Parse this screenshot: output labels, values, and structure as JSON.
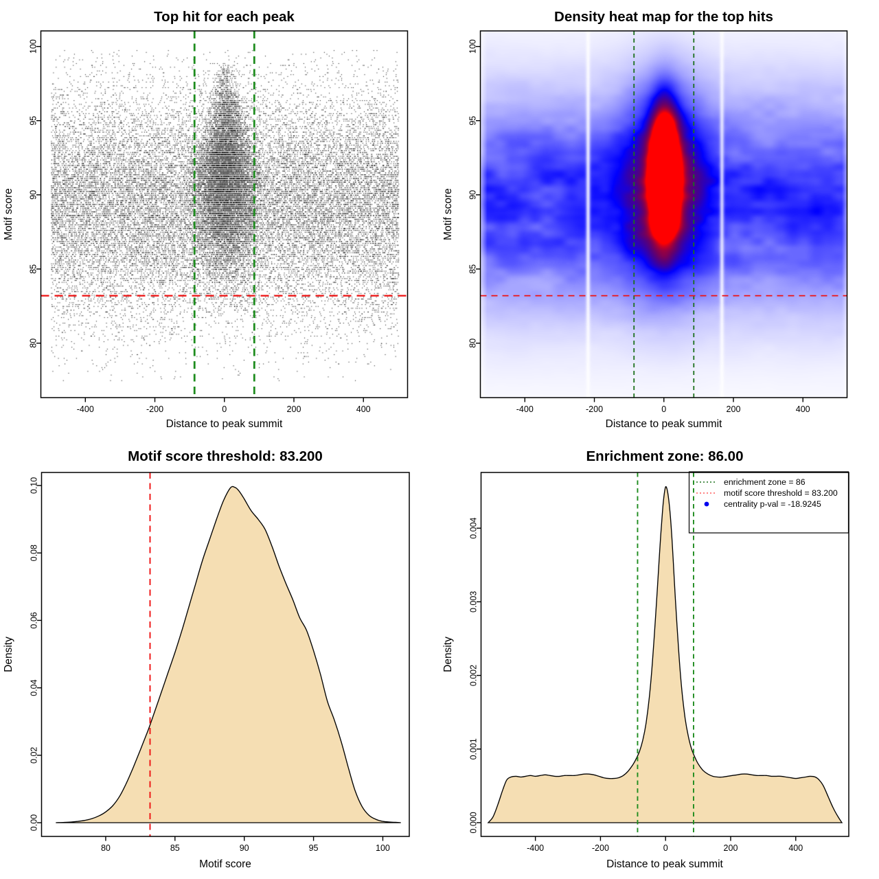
{
  "colors": {
    "background": "#ffffff",
    "wheat_fill": "#F5DEB3",
    "curve_stroke": "#000000",
    "threshold_red": "#EE1111",
    "zone_green_bright": "#1E8C1E",
    "zone_green_dark": "#1C701C",
    "legend_red_sample": "#FF5A5A",
    "legend_blue_dot": "#0000EE",
    "scatter_point": "#000000",
    "heat_colormap": [
      "#FFFFFF",
      "#0000FF",
      "#FF0000"
    ]
  },
  "chart_data": [
    {
      "type": "scatter",
      "panel": "top-left",
      "title": "Top hit for each peak",
      "xlabel": "Distance to peak summit",
      "ylabel": "Motif score",
      "xlim": [
        -528,
        527
      ],
      "ylim": [
        76.33,
        101.05
      ],
      "xticks": [
        -400,
        -200,
        0,
        200,
        400
      ],
      "xtick_labels": [
        "-400",
        "-200",
        "0",
        "200",
        "400"
      ],
      "yticks": [
        80,
        85,
        90,
        95,
        100
      ],
      "ytick_labels": [
        "80",
        "85",
        "90",
        "95",
        "100"
      ],
      "grid": false,
      "enrichment_zone_x": [
        -86,
        86
      ],
      "motif_score_threshold_y": 83.2,
      "scatter_model": {
        "seed": 12345,
        "n_background": 24500,
        "background_x_uniform": [
          -500,
          500
        ],
        "background_y_mean": 89.4,
        "background_y_sd": 3.8,
        "background_wide_fraction": 0.06,
        "background_wide_mean": 88.3,
        "background_wide_sd": 6.2,
        "n_cluster": 9500,
        "cluster_x_center": 3,
        "cluster_y_mean": 91.1,
        "cluster_y_sd": 3.1,
        "cluster_x_sd_top": 16,
        "cluster_x_sd_growth": 4.6,
        "cluster_x_sd_max": 45,
        "cluster_x_limit": 102,
        "score_quantum": 0.125,
        "score_range": [
          77.4,
          99.85
        ]
      }
    },
    {
      "type": "heatmap",
      "panel": "top-right",
      "title": "Density heat map for the top hits",
      "xlabel": "Distance to peak summit",
      "ylabel": "Motif score",
      "xlim": [
        -528,
        527
      ],
      "ylim": [
        76.33,
        101.05
      ],
      "xticks": [
        -400,
        -200,
        0,
        200,
        400
      ],
      "xtick_labels": [
        "-400",
        "-200",
        "0",
        "200",
        "400"
      ],
      "yticks": [
        80,
        85,
        90,
        95,
        100
      ],
      "ytick_labels": [
        "80",
        "85",
        "90",
        "95",
        "100"
      ],
      "grid": false,
      "enrichment_zone_x": [
        -86,
        86
      ],
      "motif_score_threshold_y": 83.2,
      "hotspot": {
        "x_center": 0,
        "score_center": 91.4,
        "x_sd": 26,
        "score_sd": 2.7
      },
      "haze_band": {
        "score_center": 89.6,
        "score_sd": 4.3
      },
      "white_streaks_x": [
        -220,
        165
      ],
      "colormap": [
        "#FFFFFF",
        "#0000FF",
        "#FF0000"
      ]
    },
    {
      "type": "area",
      "panel": "bottom-left",
      "title": "Motif score threshold: 83.200",
      "xlabel": "Motif score",
      "ylabel": "Density",
      "xlim": [
        75.37,
        101.91
      ],
      "ylim": [
        -0.00407,
        0.10387
      ],
      "xticks": [
        80,
        85,
        90,
        95,
        100
      ],
      "xtick_labels": [
        "80",
        "85",
        "90",
        "95",
        "100"
      ],
      "yticks": [
        0,
        0.02,
        0.04,
        0.06,
        0.08,
        0.1
      ],
      "ytick_labels": [
        "0.00",
        "0.02",
        "0.04",
        "0.06",
        "0.08",
        "0.10"
      ],
      "grid": false,
      "threshold_x": 83.2,
      "curve": [
        [
          76.4,
          0
        ],
        [
          77.0,
          0.0001
        ],
        [
          77.5,
          0.0002
        ],
        [
          78.0,
          0.0004
        ],
        [
          78.5,
          0.0007
        ],
        [
          79.0,
          0.0012
        ],
        [
          79.5,
          0.002
        ],
        [
          80.0,
          0.0032
        ],
        [
          80.5,
          0.005
        ],
        [
          81.0,
          0.0078
        ],
        [
          81.5,
          0.0118
        ],
        [
          82.0,
          0.0165
        ],
        [
          82.5,
          0.0216
        ],
        [
          83.0,
          0.0268
        ],
        [
          83.2,
          0.029
        ],
        [
          83.5,
          0.0325
        ],
        [
          84.0,
          0.0385
        ],
        [
          84.5,
          0.0445
        ],
        [
          85.0,
          0.0505
        ],
        [
          85.5,
          0.057
        ],
        [
          86.0,
          0.064
        ],
        [
          86.5,
          0.071
        ],
        [
          87.0,
          0.078
        ],
        [
          87.5,
          0.084
        ],
        [
          88.0,
          0.09
        ],
        [
          88.5,
          0.0955
        ],
        [
          89.0,
          0.0993
        ],
        [
          89.3,
          0.0995
        ],
        [
          89.6,
          0.0985
        ],
        [
          90.0,
          0.096
        ],
        [
          90.5,
          0.0925
        ],
        [
          91.0,
          0.09
        ],
        [
          91.5,
          0.087
        ],
        [
          92.0,
          0.082
        ],
        [
          92.5,
          0.0762
        ],
        [
          93.0,
          0.071
        ],
        [
          93.5,
          0.0662
        ],
        [
          94.0,
          0.0608
        ],
        [
          94.5,
          0.057
        ],
        [
          95.0,
          0.051
        ],
        [
          95.5,
          0.044
        ],
        [
          96.0,
          0.036
        ],
        [
          96.5,
          0.0305
        ],
        [
          97.0,
          0.024
        ],
        [
          97.5,
          0.0165
        ],
        [
          98.0,
          0.0095
        ],
        [
          98.5,
          0.0048
        ],
        [
          99.0,
          0.0022
        ],
        [
          99.5,
          0.001
        ],
        [
          100.0,
          0.0004
        ],
        [
          100.5,
          0.0002
        ],
        [
          101.0,
          0.0001
        ],
        [
          101.3,
          0
        ]
      ]
    },
    {
      "type": "area",
      "panel": "bottom-right",
      "title": "Enrichment zone: 86.00",
      "xlabel": "Distance to peak summit",
      "ylabel": "Density",
      "xlim": [
        -567,
        563
      ],
      "ylim": [
        -0.000187,
        0.004757
      ],
      "xticks": [
        -400,
        -200,
        0,
        200,
        400
      ],
      "xtick_labels": [
        "-400",
        "-200",
        "0",
        "200",
        "400"
      ],
      "yticks": [
        0,
        0.001,
        0.002,
        0.003,
        0.004
      ],
      "ytick_labels": [
        "0.000",
        "0.001",
        "0.002",
        "0.003",
        "0.004"
      ],
      "grid": false,
      "enrichment_zone_x": [
        -86,
        86
      ],
      "curve": [
        [
          -545,
          0
        ],
        [
          -530,
          8e-05
        ],
        [
          -515,
          0.00025
        ],
        [
          -500,
          0.00045
        ],
        [
          -488,
          0.00058
        ],
        [
          -475,
          0.00062
        ],
        [
          -460,
          0.00063
        ],
        [
          -445,
          0.00062
        ],
        [
          -430,
          0.00063
        ],
        [
          -415,
          0.00064
        ],
        [
          -400,
          0.00063
        ],
        [
          -385,
          0.00064
        ],
        [
          -370,
          0.00065
        ],
        [
          -355,
          0.00064
        ],
        [
          -340,
          0.00063
        ],
        [
          -325,
          0.00063
        ],
        [
          -310,
          0.00064
        ],
        [
          -295,
          0.00064
        ],
        [
          -280,
          0.00064
        ],
        [
          -265,
          0.00065
        ],
        [
          -250,
          0.00066
        ],
        [
          -235,
          0.00066
        ],
        [
          -220,
          0.00065
        ],
        [
          -205,
          0.00063
        ],
        [
          -190,
          0.00061
        ],
        [
          -175,
          0.0006
        ],
        [
          -160,
          0.0006
        ],
        [
          -145,
          0.00061
        ],
        [
          -130,
          0.00064
        ],
        [
          -115,
          0.0007
        ],
        [
          -100,
          0.00079
        ],
        [
          -90,
          0.00087
        ],
        [
          -80,
          0.00097
        ],
        [
          -70,
          0.00112
        ],
        [
          -60,
          0.00135
        ],
        [
          -50,
          0.0017
        ],
        [
          -40,
          0.0022
        ],
        [
          -30,
          0.00285
        ],
        [
          -25,
          0.0032
        ],
        [
          -20,
          0.00355
        ],
        [
          -15,
          0.0039
        ],
        [
          -10,
          0.0042
        ],
        [
          -5,
          0.00443
        ],
        [
          0,
          0.00456
        ],
        [
          5,
          0.00452
        ],
        [
          10,
          0.00438
        ],
        [
          15,
          0.00415
        ],
        [
          20,
          0.00383
        ],
        [
          25,
          0.00345
        ],
        [
          30,
          0.00305
        ],
        [
          40,
          0.00235
        ],
        [
          50,
          0.0018
        ],
        [
          60,
          0.00142
        ],
        [
          70,
          0.00117
        ],
        [
          80,
          0.001
        ],
        [
          90,
          0.00089
        ],
        [
          100,
          0.0008
        ],
        [
          115,
          0.00071
        ],
        [
          130,
          0.00066
        ],
        [
          145,
          0.00063
        ],
        [
          160,
          0.00062
        ],
        [
          175,
          0.00062
        ],
        [
          190,
          0.00063
        ],
        [
          205,
          0.00064
        ],
        [
          220,
          0.00065
        ],
        [
          235,
          0.00066
        ],
        [
          250,
          0.00066
        ],
        [
          265,
          0.00065
        ],
        [
          280,
          0.00064
        ],
        [
          295,
          0.00064
        ],
        [
          310,
          0.00064
        ],
        [
          325,
          0.00063
        ],
        [
          340,
          0.00063
        ],
        [
          355,
          0.00063
        ],
        [
          370,
          0.00062
        ],
        [
          385,
          0.00061
        ],
        [
          400,
          0.0006
        ],
        [
          415,
          0.00061
        ],
        [
          430,
          0.00062
        ],
        [
          445,
          0.00063
        ],
        [
          460,
          0.00062
        ],
        [
          472,
          0.00058
        ],
        [
          485,
          0.0005
        ],
        [
          500,
          0.00035
        ],
        [
          515,
          0.0002
        ],
        [
          530,
          8e-05
        ],
        [
          542,
          0
        ]
      ],
      "legend": {
        "items": [
          {
            "marker": "dotted-line",
            "color": "#1C701C",
            "label": "enrichment zone = 86"
          },
          {
            "marker": "dotted-line",
            "color": "#FF5A5A",
            "label": "motif score threshold = 83.200"
          },
          {
            "marker": "dot",
            "color": "#0000EE",
            "label": "centrality p-val = -18.9245"
          }
        ]
      }
    }
  ]
}
